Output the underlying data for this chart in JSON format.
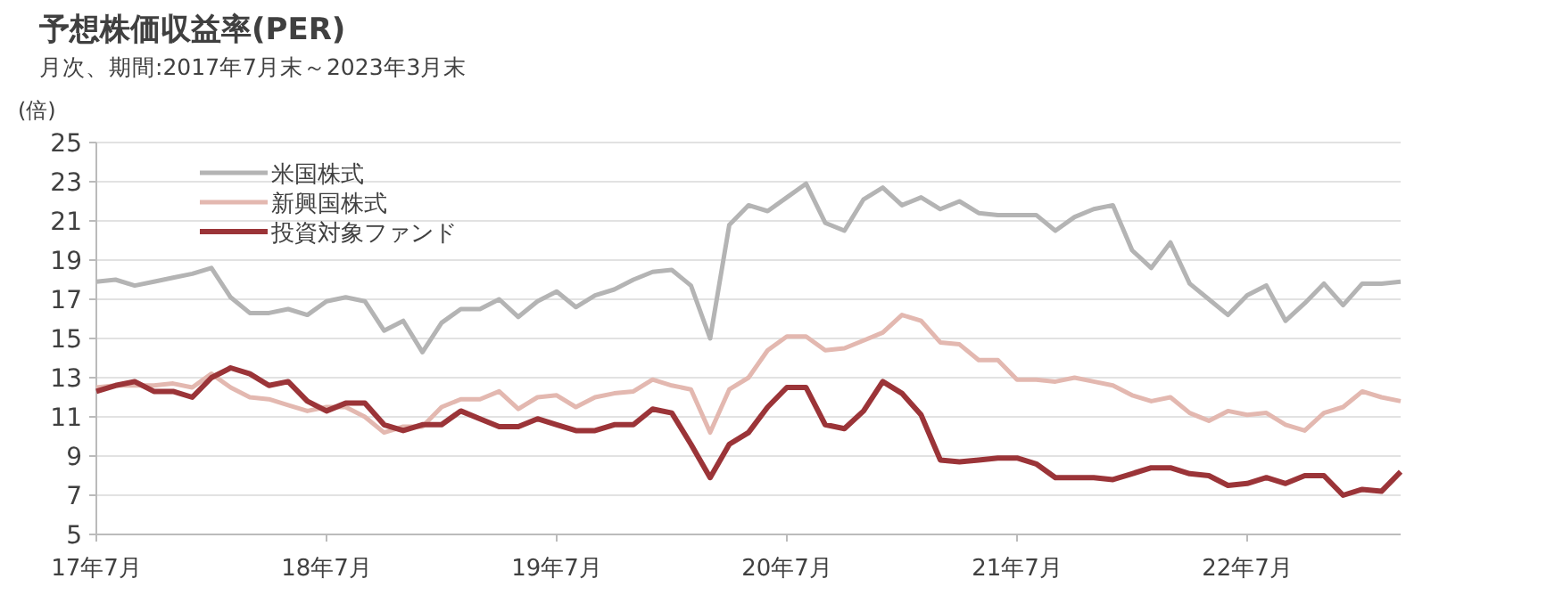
{
  "chart_data": {
    "type": "line",
    "title": "予想株価収益率(PER)",
    "subtitle": "月次、期間:2017年7月末～2023年3月末",
    "ylabel": "(倍)",
    "x": [
      "2017-07",
      "2017-08",
      "2017-09",
      "2017-10",
      "2017-11",
      "2017-12",
      "2018-01",
      "2018-02",
      "2018-03",
      "2018-04",
      "2018-05",
      "2018-06",
      "2018-07",
      "2018-08",
      "2018-09",
      "2018-10",
      "2018-11",
      "2018-12",
      "2019-01",
      "2019-02",
      "2019-03",
      "2019-04",
      "2019-05",
      "2019-06",
      "2019-07",
      "2019-08",
      "2019-09",
      "2019-10",
      "2019-11",
      "2019-12",
      "2020-01",
      "2020-02",
      "2020-03",
      "2020-04",
      "2020-05",
      "2020-06",
      "2020-07",
      "2020-08",
      "2020-09",
      "2020-10",
      "2020-11",
      "2020-12",
      "2021-01",
      "2021-02",
      "2021-03",
      "2021-04",
      "2021-05",
      "2021-06",
      "2021-07",
      "2021-08",
      "2021-09",
      "2021-10",
      "2021-11",
      "2021-12",
      "2022-01",
      "2022-02",
      "2022-03",
      "2022-04",
      "2022-05",
      "2022-06",
      "2022-07",
      "2022-08",
      "2022-09",
      "2022-10",
      "2022-11",
      "2022-12",
      "2023-01",
      "2023-02",
      "2023-03"
    ],
    "series": [
      {
        "name": "米国株式",
        "color": "#b4b4b4",
        "values": [
          17.9,
          18.0,
          17.7,
          17.9,
          18.1,
          18.3,
          18.6,
          17.1,
          16.3,
          16.3,
          16.5,
          16.2,
          16.9,
          17.1,
          16.9,
          15.4,
          15.9,
          14.3,
          15.8,
          16.5,
          16.5,
          17.0,
          16.1,
          16.9,
          17.4,
          16.6,
          17.2,
          17.5,
          18.0,
          18.4,
          18.5,
          17.7,
          15.0,
          20.8,
          21.8,
          21.5,
          22.2,
          22.9,
          20.9,
          20.5,
          22.1,
          22.7,
          21.8,
          22.2,
          21.6,
          22.0,
          21.4,
          21.3,
          21.3,
          21.3,
          20.5,
          21.2,
          21.6,
          21.8,
          19.5,
          18.6,
          19.9,
          17.8,
          17.0,
          16.2,
          17.2,
          17.7,
          15.9,
          16.8,
          17.8,
          16.7,
          17.8,
          17.8,
          17.9
        ]
      },
      {
        "name": "新興国株式",
        "color": "#e3b8b0",
        "values": [
          12.5,
          12.6,
          12.6,
          12.6,
          12.7,
          12.5,
          13.2,
          12.5,
          12.0,
          11.9,
          11.6,
          11.3,
          11.5,
          11.5,
          11.0,
          10.2,
          10.5,
          10.5,
          11.5,
          11.9,
          11.9,
          12.3,
          11.4,
          12.0,
          12.1,
          11.5,
          12.0,
          12.2,
          12.3,
          12.9,
          12.6,
          12.4,
          10.2,
          12.4,
          13.0,
          14.4,
          15.1,
          15.1,
          14.4,
          14.5,
          14.9,
          15.3,
          16.2,
          15.9,
          14.8,
          14.7,
          13.9,
          13.9,
          12.9,
          12.9,
          12.8,
          13.0,
          12.8,
          12.6,
          12.1,
          11.8,
          12.0,
          11.2,
          10.8,
          11.3,
          11.1,
          11.2,
          10.6,
          10.3,
          11.2,
          11.5,
          12.3,
          12.0,
          11.8
        ]
      },
      {
        "name": "投資対象ファンド",
        "color": "#9b3438",
        "values": [
          12.3,
          12.6,
          12.8,
          12.3,
          12.3,
          12.0,
          13.0,
          13.5,
          13.2,
          12.6,
          12.8,
          11.8,
          11.3,
          11.7,
          11.7,
          10.6,
          10.3,
          10.6,
          10.6,
          11.3,
          10.9,
          10.5,
          10.5,
          10.9,
          10.6,
          10.3,
          10.3,
          10.6,
          10.6,
          11.4,
          11.2,
          9.6,
          7.9,
          9.6,
          10.2,
          11.5,
          12.5,
          12.5,
          10.6,
          10.4,
          11.3,
          12.8,
          12.2,
          11.1,
          8.8,
          8.7,
          8.8,
          8.9,
          8.9,
          8.6,
          7.9,
          7.9,
          7.9,
          7.8,
          8.1,
          8.4,
          8.4,
          8.1,
          8.0,
          7.5,
          7.6,
          7.9,
          7.6,
          8.0,
          8.0,
          7.0,
          7.3,
          7.2,
          8.2
        ]
      }
    ],
    "xlim": [
      "2017-07",
      "2023-03"
    ],
    "ylim": [
      5,
      25
    ],
    "yticks": [
      5,
      7,
      9,
      11,
      13,
      15,
      17,
      19,
      21,
      23,
      25
    ],
    "xticks": [
      {
        "value": "2017-07",
        "label": "17年7月"
      },
      {
        "value": "2018-07",
        "label": "18年7月"
      },
      {
        "value": "2019-07",
        "label": "19年7月"
      },
      {
        "value": "2020-07",
        "label": "20年7月"
      },
      {
        "value": "2021-07",
        "label": "21年7月"
      },
      {
        "value": "2022-07",
        "label": "22年7月"
      }
    ],
    "grid": "y",
    "legend": "top left"
  }
}
